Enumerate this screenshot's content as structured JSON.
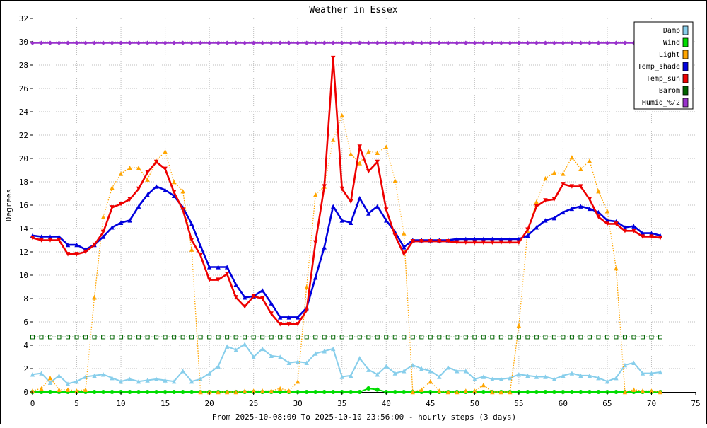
{
  "chart_data": {
    "type": "line",
    "title": "Weather in Essex",
    "ylabel": "Degrees",
    "xlabel": "From 2025-10-08:00 To 2025-10-10 23:56:00 - hourly steps (3 days)",
    "xlim": [
      0,
      75
    ],
    "ylim": [
      0,
      32
    ],
    "x_ticks": [
      0,
      5,
      10,
      15,
      20,
      25,
      30,
      35,
      40,
      45,
      50,
      55,
      60,
      65,
      70,
      75
    ],
    "y_ticks": [
      0,
      2,
      4,
      6,
      8,
      10,
      12,
      14,
      16,
      18,
      20,
      22,
      24,
      26,
      28,
      30,
      32
    ],
    "grid": true,
    "legend_position": "top-right",
    "x": [
      0,
      1,
      2,
      3,
      4,
      5,
      6,
      7,
      8,
      9,
      10,
      11,
      12,
      13,
      14,
      15,
      16,
      17,
      18,
      19,
      20,
      21,
      22,
      23,
      24,
      25,
      26,
      27,
      28,
      29,
      30,
      31,
      32,
      33,
      34,
      35,
      36,
      37,
      38,
      39,
      40,
      41,
      42,
      43,
      44,
      45,
      46,
      47,
      48,
      49,
      50,
      51,
      52,
      53,
      54,
      55,
      56,
      57,
      58,
      59,
      60,
      61,
      62,
      63,
      64,
      65,
      66,
      67,
      68,
      69,
      70,
      71
    ],
    "series": [
      {
        "name": "Damp",
        "color": "#87ceeb",
        "style": "solid",
        "marker": "triangle-up",
        "values": [
          1.5,
          1.6,
          0.8,
          1.4,
          0.7,
          0.9,
          1.3,
          1.4,
          1.5,
          1.2,
          0.9,
          1.1,
          0.9,
          1.0,
          1.1,
          1.0,
          0.9,
          1.8,
          0.9,
          1.1,
          1.6,
          2.2,
          3.9,
          3.6,
          4.1,
          3.0,
          3.7,
          3.1,
          3.0,
          2.5,
          2.6,
          2.5,
          3.3,
          3.5,
          3.7,
          1.3,
          1.4,
          2.9,
          1.9,
          1.5,
          2.2,
          1.6,
          1.8,
          2.3,
          2.0,
          1.8,
          1.3,
          2.1,
          1.8,
          1.8,
          1.1,
          1.3,
          1.1,
          1.1,
          1.2,
          1.5,
          1.4,
          1.3,
          1.3,
          1.1,
          1.4,
          1.6,
          1.4,
          1.4,
          1.2,
          0.9,
          1.2,
          2.3,
          2.5,
          1.6,
          1.6,
          1.7
        ]
      },
      {
        "name": "Wind",
        "color": "#00dd00",
        "style": "solid",
        "marker": "circle",
        "values": [
          0.0,
          0.0,
          0.0,
          0.0,
          0.0,
          0.0,
          0.0,
          0.0,
          0.0,
          0.0,
          0.0,
          0.0,
          0.0,
          0.0,
          0.0,
          0.0,
          0.0,
          0.0,
          0.0,
          0.0,
          0.0,
          0.0,
          0.0,
          0.0,
          0.0,
          0.0,
          0.0,
          0.0,
          0.0,
          0.0,
          0.0,
          0.0,
          0.0,
          0.0,
          0.0,
          0.0,
          0.0,
          0.0,
          0.3,
          0.2,
          0.0,
          0.0,
          0.0,
          0.0,
          0.0,
          0.0,
          0.0,
          0.0,
          0.0,
          0.0,
          0.0,
          0.0,
          0.0,
          0.0,
          0.0,
          0.0,
          0.0,
          0.0,
          0.0,
          0.0,
          0.0,
          0.0,
          0.0,
          0.0,
          0.0,
          0.0,
          0.0,
          0.0,
          0.0,
          0.0,
          0.0,
          0.0
        ]
      },
      {
        "name": "Light",
        "color": "#ffa500",
        "style": "dotted",
        "marker": "triangle-up",
        "values": [
          0.1,
          0.3,
          1.2,
          0.2,
          0.2,
          0.1,
          0.2,
          8.1,
          15.0,
          17.5,
          18.7,
          19.2,
          19.2,
          18.2,
          19.8,
          20.6,
          18.0,
          17.2,
          12.2,
          0.0,
          0.0,
          0.0,
          0.0,
          0.0,
          0.1,
          0.1,
          0.1,
          0.1,
          0.3,
          0.1,
          0.9,
          9.0,
          16.9,
          17.6,
          21.6,
          23.7,
          20.4,
          19.6,
          20.6,
          20.5,
          21.0,
          18.1,
          13.6,
          0.0,
          0.2,
          0.9,
          0.1,
          0.0,
          0.0,
          0.1,
          0.1,
          0.6,
          0.0,
          0.0,
          0.0,
          5.7,
          13.8,
          16.3,
          18.3,
          18.8,
          18.7,
          20.1,
          19.1,
          19.8,
          17.2,
          15.5,
          10.6,
          0.0,
          0.2,
          0.1,
          0.1,
          0.0
        ]
      },
      {
        "name": "Temp_shade",
        "color": "#0000dd",
        "style": "solid",
        "marker": "triangle-up",
        "values": [
          13.4,
          13.3,
          13.3,
          13.3,
          12.6,
          12.6,
          12.2,
          12.6,
          13.3,
          14.1,
          14.5,
          14.7,
          15.9,
          16.9,
          17.6,
          17.3,
          16.8,
          15.8,
          14.4,
          12.5,
          10.7,
          10.7,
          10.7,
          9.2,
          8.1,
          8.2,
          8.7,
          7.6,
          6.4,
          6.4,
          6.4,
          7.2,
          9.8,
          12.4,
          15.9,
          14.7,
          14.5,
          16.6,
          15.3,
          15.9,
          14.7,
          13.7,
          12.4,
          13.0,
          13.0,
          13.0,
          13.0,
          13.0,
          13.1,
          13.1,
          13.1,
          13.1,
          13.1,
          13.1,
          13.1,
          13.1,
          13.4,
          14.1,
          14.7,
          14.9,
          15.4,
          15.7,
          15.9,
          15.7,
          15.4,
          14.7,
          14.6,
          14.1,
          14.2,
          13.6,
          13.6,
          13.4
        ]
      },
      {
        "name": "Temp_sun",
        "color": "#ee0000",
        "style": "solid",
        "marker": "triangle-down",
        "values": [
          13.2,
          13.0,
          13.0,
          13.0,
          11.8,
          11.8,
          12.0,
          12.6,
          13.7,
          15.8,
          16.1,
          16.5,
          17.4,
          18.8,
          19.7,
          19.1,
          17.1,
          15.6,
          13.0,
          11.7,
          9.6,
          9.6,
          10.1,
          8.1,
          7.3,
          8.2,
          8.0,
          6.7,
          5.8,
          5.8,
          5.8,
          7.0,
          12.8,
          17.6,
          28.6,
          17.4,
          16.3,
          21.0,
          18.9,
          19.7,
          15.6,
          13.4,
          11.8,
          12.9,
          12.9,
          12.9,
          12.9,
          12.9,
          12.8,
          12.8,
          12.8,
          12.8,
          12.8,
          12.8,
          12.8,
          12.8,
          13.9,
          15.9,
          16.4,
          16.5,
          17.8,
          17.6,
          17.6,
          16.5,
          15.0,
          14.4,
          14.4,
          13.8,
          13.8,
          13.3,
          13.3,
          13.2
        ]
      },
      {
        "name": "Barom",
        "color": "#006400",
        "style": "dotted",
        "marker": "square-open",
        "values": [
          4.7,
          4.7,
          4.7,
          4.7,
          4.7,
          4.7,
          4.7,
          4.7,
          4.7,
          4.7,
          4.7,
          4.7,
          4.7,
          4.7,
          4.7,
          4.7,
          4.7,
          4.7,
          4.7,
          4.7,
          4.7,
          4.7,
          4.7,
          4.7,
          4.7,
          4.7,
          4.7,
          4.7,
          4.7,
          4.7,
          4.7,
          4.7,
          4.7,
          4.7,
          4.7,
          4.7,
          4.7,
          4.7,
          4.7,
          4.7,
          4.7,
          4.7,
          4.7,
          4.7,
          4.7,
          4.7,
          4.7,
          4.7,
          4.7,
          4.7,
          4.7,
          4.7,
          4.7,
          4.7,
          4.7,
          4.7,
          4.7,
          4.7,
          4.7,
          4.7,
          4.7,
          4.7,
          4.7,
          4.7,
          4.7,
          4.7,
          4.7,
          4.7,
          4.7,
          4.7,
          4.7,
          4.7
        ]
      },
      {
        "name": "Humid_%/2",
        "color": "#9932cc",
        "style": "solid",
        "marker": "diamond",
        "values": [
          29.9,
          29.9,
          29.9,
          29.9,
          29.9,
          29.9,
          29.9,
          29.9,
          29.9,
          29.9,
          29.9,
          29.9,
          29.9,
          29.9,
          29.9,
          29.9,
          29.9,
          29.9,
          29.9,
          29.9,
          29.9,
          29.9,
          29.9,
          29.9,
          29.9,
          29.9,
          29.9,
          29.9,
          29.9,
          29.9,
          29.9,
          29.9,
          29.9,
          29.9,
          29.9,
          29.9,
          29.9,
          29.9,
          29.9,
          29.9,
          29.9,
          29.9,
          29.9,
          29.9,
          29.9,
          29.9,
          29.9,
          29.9,
          29.9,
          29.9,
          29.9,
          29.9,
          29.9,
          29.9,
          29.9,
          29.9,
          29.9,
          29.9,
          29.9,
          29.9,
          29.9,
          29.9,
          29.9,
          29.9,
          29.9,
          29.9,
          29.9,
          29.9,
          29.9,
          29.9,
          29.9,
          29.9
        ]
      }
    ]
  }
}
